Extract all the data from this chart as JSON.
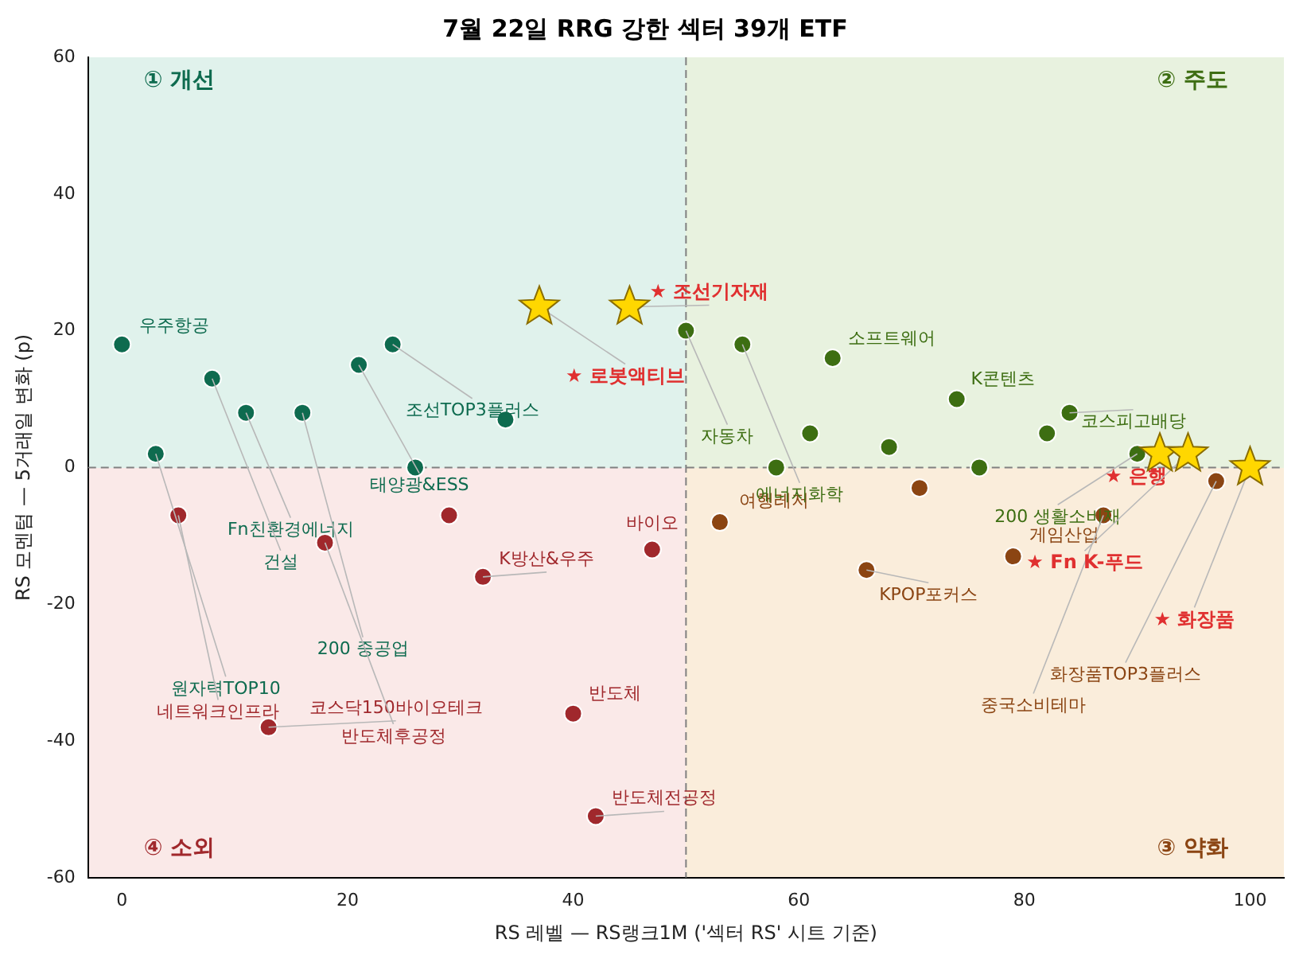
{
  "chart_data": {
    "type": "scatter",
    "title": "7월 22일 RRG 강한 섹터 39개 ETF",
    "xlabel": "RS 레벨 — RS랭크1M ('섹터 RS' 시트 기준)",
    "ylabel": "RS 모멘텀 — 5거래일 변화 (p)",
    "xlim": [
      -3,
      103
    ],
    "xticks": [
      0,
      20,
      40,
      60,
      80,
      100
    ],
    "ylim": [
      -60,
      60
    ],
    "yticks": [
      -60,
      -40,
      -20,
      0,
      20,
      40,
      60
    ],
    "grid": false,
    "legend": false,
    "ref_lines": [
      {
        "axis": "x",
        "value": 50,
        "color": "#808080",
        "line_style": "dashed"
      },
      {
        "axis": "y",
        "value": 0,
        "color": "#808080",
        "line_style": "dashed"
      }
    ],
    "series": [
      {
        "color": "#0e6b4f",
        "marker": "circle",
        "x": [
          0,
          8,
          11,
          16,
          21,
          24,
          3,
          26,
          34
        ],
        "values": [
          18,
          13,
          8,
          8,
          15,
          18,
          2,
          0,
          7
        ]
      },
      {
        "color": "#3d6e12",
        "marker": "circle",
        "x": [
          50,
          55,
          63,
          58,
          61,
          68,
          74,
          76,
          82,
          84,
          90
        ],
        "values": [
          20,
          18,
          16,
          0,
          5,
          3,
          10,
          0,
          5,
          8,
          2
        ]
      },
      {
        "color": "#8b4513",
        "marker": "circle",
        "x": [
          53,
          70.7,
          66,
          79,
          87,
          97
        ],
        "values": [
          -8,
          -3,
          -15,
          -13,
          -7,
          -2
        ]
      },
      {
        "color": "#a0282c",
        "marker": "circle",
        "x": [
          5,
          18,
          29,
          32,
          47,
          40,
          13,
          42
        ],
        "values": [
          -7,
          -11,
          -7,
          -16,
          -12,
          -36,
          -38,
          -51
        ]
      },
      {
        "color": "#ffd700",
        "marker": "star",
        "x": [
          37,
          45,
          92,
          94.5,
          100
        ],
        "values": [
          23.5,
          23.5,
          2,
          2,
          0
        ]
      }
    ],
    "annotations": [
      "① 개선",
      "② 주도",
      "③ 약화",
      "④ 소외",
      {
        "text": "우주항공",
        "x": 0,
        "y": 18
      },
      {
        "text": "조선TOP3플러스",
        "x": 24,
        "y": 18
      },
      {
        "text": "태양광&ESS",
        "x": 21,
        "y": 15
      },
      {
        "text": "Fn친환경에너지",
        "x": 11,
        "y": 8
      },
      {
        "text": "건설",
        "x": 8,
        "y": 13
      },
      {
        "text": "200 중공업",
        "x": 16,
        "y": 8
      },
      {
        "text": "원자력TOP10",
        "x": 3,
        "y": 2
      },
      {
        "text": "네트워크인프라",
        "x": 5,
        "y": -7
      },
      {
        "text": "코스닥150바이오테크",
        "x": 13,
        "y": -38
      },
      {
        "text": "반도체후공정",
        "x": 18,
        "y": -11
      },
      {
        "text": "K방산&우주",
        "x": 32,
        "y": -16
      },
      {
        "text": "반도체",
        "x": 40,
        "y": -36
      },
      {
        "text": "반도체전공정",
        "x": 42,
        "y": -51
      },
      {
        "text": "바이오",
        "x": 47,
        "y": -12
      },
      {
        "text": "여행레저",
        "x": 53,
        "y": -8
      },
      {
        "text": "자동차",
        "x": 50,
        "y": 20
      },
      {
        "text": "에너지화학",
        "x": 55,
        "y": 18
      },
      {
        "text": "소프트웨어",
        "x": 63,
        "y": 16
      },
      {
        "text": "K콘텐츠",
        "x": 74,
        "y": 10
      },
      {
        "text": "코스피고배당",
        "x": 84,
        "y": 8
      },
      {
        "text": "200 생활소비재",
        "x": 90,
        "y": 2
      },
      {
        "text": "KPOP포커스",
        "x": 66,
        "y": -15
      },
      {
        "text": "게임산업",
        "x": 79,
        "y": -13
      },
      {
        "text": "중국소비테마",
        "x": 87,
        "y": -7
      },
      {
        "text": "화장품TOP3플러스",
        "x": 97,
        "y": -2
      },
      {
        "text": "★ 조선기자재",
        "x": 45,
        "y": 23.5
      },
      {
        "text": "★ 로봇액티브",
        "x": 37,
        "y": 23.5
      },
      {
        "text": "★ 은행",
        "x": 92,
        "y": 2
      },
      {
        "text": "★ Fn K-푸드",
        "x": 94.5,
        "y": 2
      },
      {
        "text": "★ 화장품",
        "x": 100,
        "y": 0
      }
    ]
  }
}
